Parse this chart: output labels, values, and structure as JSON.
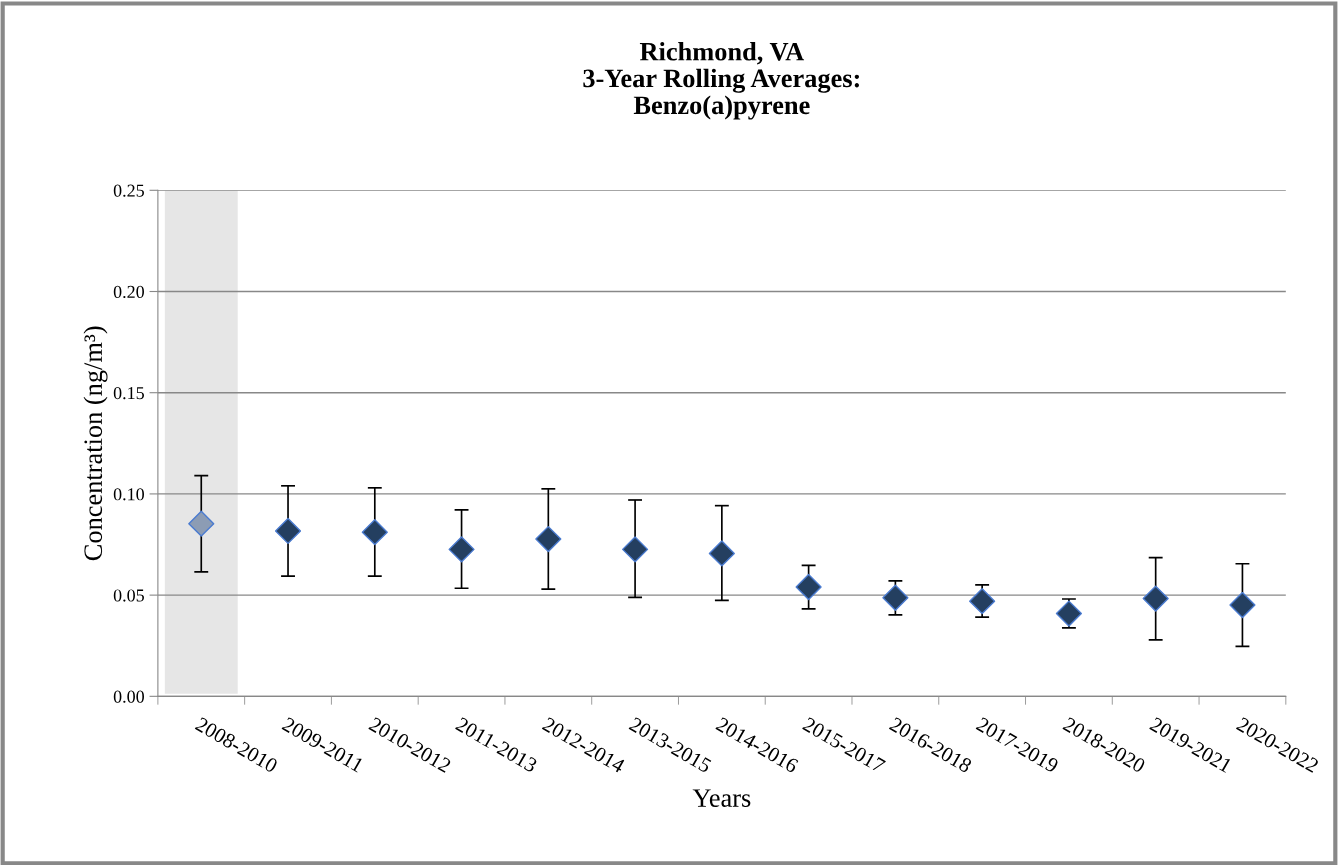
{
  "chart_data": {
    "type": "scatter",
    "title": "Richmond, VA\n3-Year Rolling Averages:\nBenzo(a)pyrene",
    "xlabel": "Years",
    "ylabel": "Concentration (ng/m³)",
    "categories": [
      "2008-2010",
      "2009-2011",
      "2010-2012",
      "2011-2013",
      "2012-2014",
      "2013-2015",
      "2014-2016",
      "2015-2017",
      "2016-2018",
      "2017-2019",
      "2018-2020",
      "2019-2021",
      "2020-2022"
    ],
    "values": [
      0.0853,
      0.0817,
      0.0811,
      0.0726,
      0.0777,
      0.0726,
      0.0706,
      0.054,
      0.0487,
      0.047,
      0.0409,
      0.0483,
      0.0451
    ],
    "errors": [
      [
        0.0615,
        0.109
      ],
      [
        0.0594,
        0.104
      ],
      [
        0.0594,
        0.103
      ],
      [
        0.0534,
        0.0921
      ],
      [
        0.053,
        0.1025
      ],
      [
        0.0489,
        0.097
      ],
      [
        0.0474,
        0.0942
      ],
      [
        0.0432,
        0.0647
      ],
      [
        0.0402,
        0.057
      ],
      [
        0.0391,
        0.0551
      ],
      [
        0.0338,
        0.0481
      ],
      [
        0.0279,
        0.0685
      ],
      [
        0.0247,
        0.0655
      ]
    ],
    "colors": [
      "#8c9cb4",
      "#243f60",
      "#243f60",
      "#243f60",
      "#243f60",
      "#243f60",
      "#243f60",
      "#243f60",
      "#243f60",
      "#243f60",
      "#243f60",
      "#243f60",
      "#243f60"
    ],
    "bands": [
      {
        "axis": "x",
        "from": "2008-2010",
        "to": "2008-2010",
        "color": "#e6e6e6"
      }
    ],
    "ylim": [
      0,
      0.25
    ],
    "yticks": [
      {
        "value": 0,
        "label": "0.00"
      },
      {
        "value": 0.05,
        "label": "0.05"
      },
      {
        "value": 0.1,
        "label": "0.10"
      },
      {
        "value": 0.15,
        "label": "0.15"
      },
      {
        "value": 0.2,
        "label": "0.20"
      },
      {
        "value": 0.25,
        "label": "0.25"
      }
    ],
    "grid": "y",
    "marker": "diamond",
    "legend": false
  }
}
